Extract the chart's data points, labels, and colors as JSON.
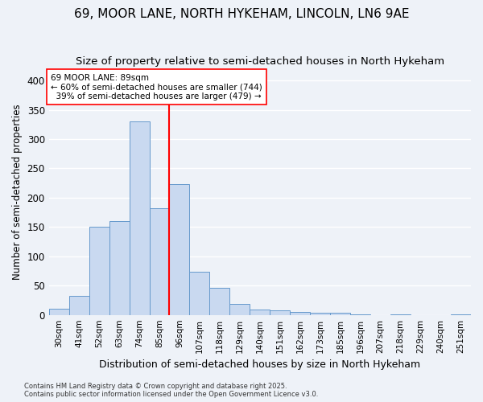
{
  "title": "69, MOOR LANE, NORTH HYKEHAM, LINCOLN, LN6 9AE",
  "subtitle": "Size of property relative to semi-detached houses in North Hykeham",
  "xlabel": "Distribution of semi-detached houses by size in North Hykeham",
  "ylabel": "Number of semi-detached properties",
  "bin_labels": [
    "30sqm",
    "41sqm",
    "52sqm",
    "63sqm",
    "74sqm",
    "85sqm",
    "96sqm",
    "107sqm",
    "118sqm",
    "129sqm",
    "140sqm",
    "151sqm",
    "162sqm",
    "173sqm",
    "185sqm",
    "196sqm",
    "207sqm",
    "218sqm",
    "229sqm",
    "240sqm",
    "251sqm"
  ],
  "bin_values": [
    10,
    32,
    150,
    160,
    330,
    182,
    223,
    74,
    46,
    19,
    9,
    8,
    5,
    3,
    4,
    1,
    0,
    1,
    0,
    0,
    1
  ],
  "bar_color": "#c9d9f0",
  "bar_edge_color": "#6699cc",
  "vline_x": 5.5,
  "vline_color": "red",
  "annotation_line1": "69 MOOR LANE: 89sqm",
  "annotation_line2": "← 60% of semi-detached houses are smaller (744)",
  "annotation_line3": "  39% of semi-detached houses are larger (479) →",
  "annotation_box_color": "white",
  "annotation_box_edge_color": "red",
  "footer_text": "Contains HM Land Registry data © Crown copyright and database right 2025.\nContains public sector information licensed under the Open Government Licence v3.0.",
  "ylim": [
    0,
    420
  ],
  "yticks": [
    0,
    50,
    100,
    150,
    200,
    250,
    300,
    350,
    400
  ],
  "background_color": "#eef2f8",
  "grid_color": "#ffffff",
  "title_fontsize": 11,
  "subtitle_fontsize": 9.5
}
